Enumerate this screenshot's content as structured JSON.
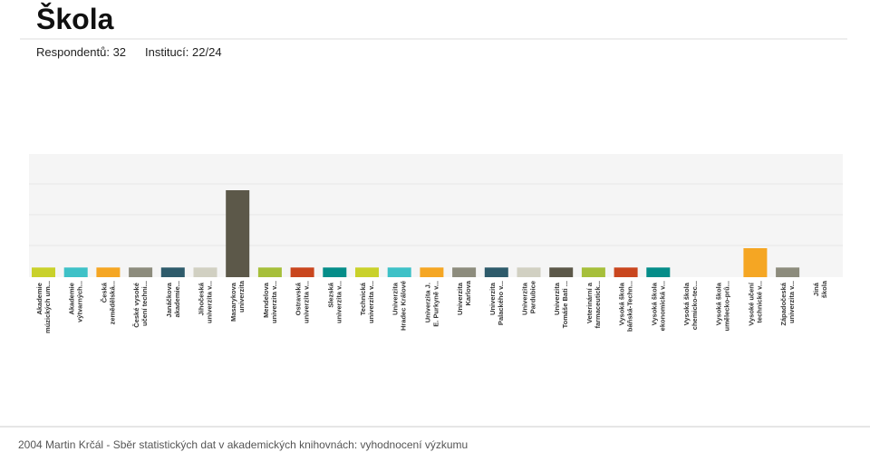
{
  "chart_data": {
    "type": "bar",
    "title": "Škola",
    "subtitles": [
      "Respondentů: 32",
      "Institucí: 22/24"
    ],
    "categories": [
      "Akademie múzických um...",
      "Akademie výtvarných...",
      "Česká zemědělská...",
      "České vysoké učení techni...",
      "Janáčkova akademie...",
      "Jihočeská univerzita v...",
      "Masarykova univerzita",
      "Mendelova univerzita v...",
      "Ostravská univerzita v...",
      "Slezská univerzita v...",
      "Technická univerzita v...",
      "Univerzita Hradec Králové",
      "Univerzita J. E. Purkyně v...",
      "Univerzita Karlova",
      "Univerzita Palackého v...",
      "Univerzita Pardubice",
      "Univerzita Tomáše Bati ...",
      "Veterinární a farmaceutick...",
      "Vysoká škola báňská-Techn...",
      "Vysoká škola ekonomická v...",
      "Vysoká škola chemicko-tec...",
      "Vysoká škola umělecko-prů...",
      "Vysoké učení technické v...",
      "Západočeská univerzita v...",
      "Jiná škola"
    ],
    "values": [
      1,
      1,
      1,
      1,
      1,
      1,
      9,
      1,
      1,
      1,
      1,
      1,
      1,
      1,
      1,
      1,
      1,
      1,
      1,
      1,
      0,
      0,
      3,
      1,
      0
    ],
    "colors": [
      "#c9d12b",
      "#3ec1c7",
      "#f5a623",
      "#8d8c7d",
      "#2e5b6b",
      "#d1d0c2",
      "#5c5849",
      "#a6bf3a",
      "#c9461e",
      "#058d89"
    ],
    "footer": "2004 Martin Krčál - Sběr statistických dat v akademických knihovnách: vyhodnocení výzkumu"
  }
}
